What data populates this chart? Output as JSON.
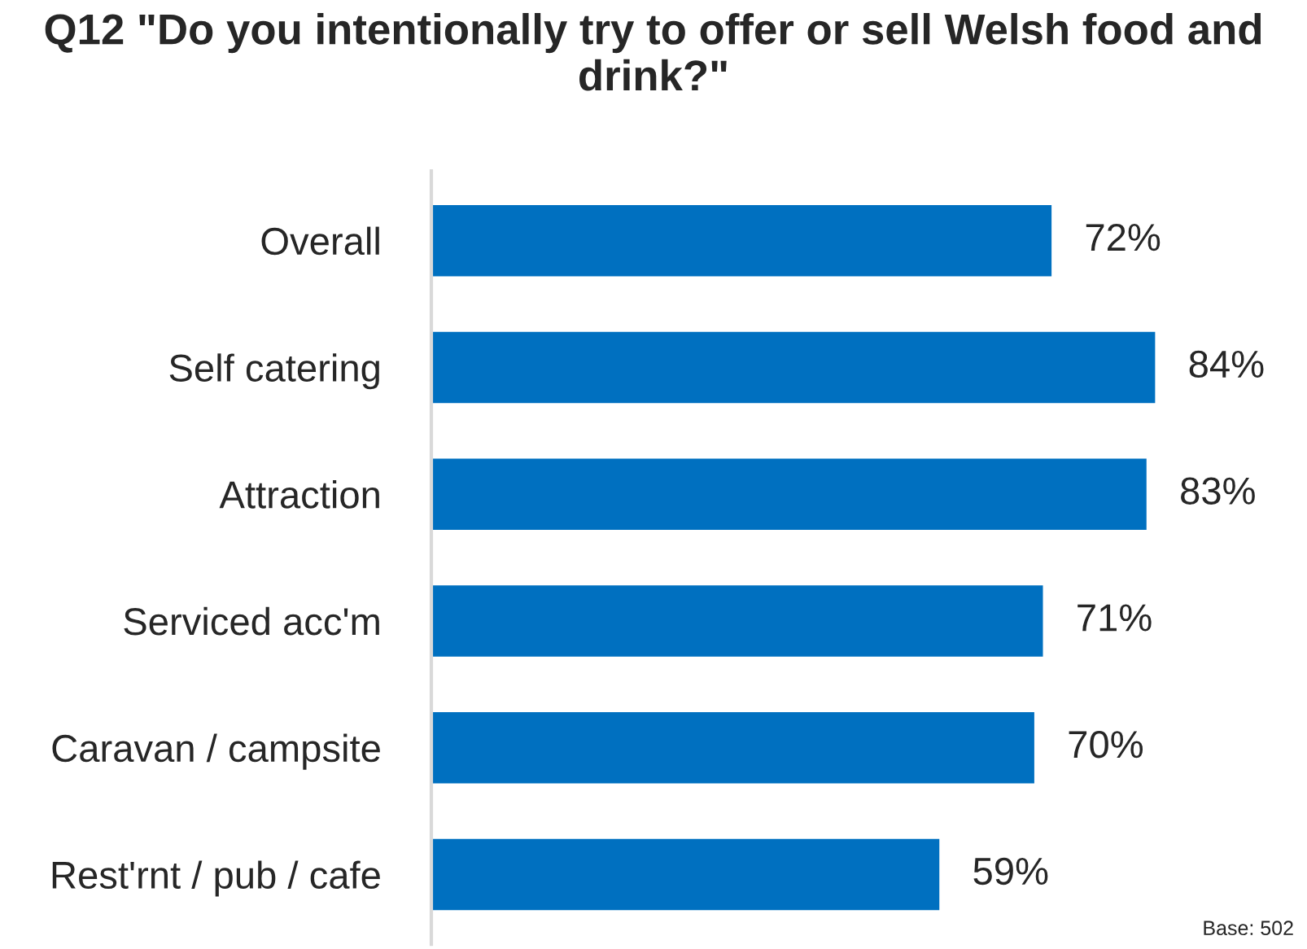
{
  "chart_data": {
    "type": "bar",
    "orientation": "horizontal",
    "title": "Q12 \"Do you intentionally try to offer or sell Welsh food and drink?\"",
    "categories": [
      "Overall",
      "Self catering",
      "Attraction",
      "Serviced acc'm",
      "Caravan / campsite",
      "Rest'rnt / pub / cafe"
    ],
    "values": [
      72,
      84,
      83,
      71,
      70,
      59
    ],
    "value_labels": [
      "72%",
      "84%",
      "83%",
      "71%",
      "70%",
      "59%"
    ],
    "color": "#0070c0",
    "grid": false,
    "legend": false,
    "tick_labels": "y",
    "annotations": [
      "Base: 502"
    ]
  }
}
